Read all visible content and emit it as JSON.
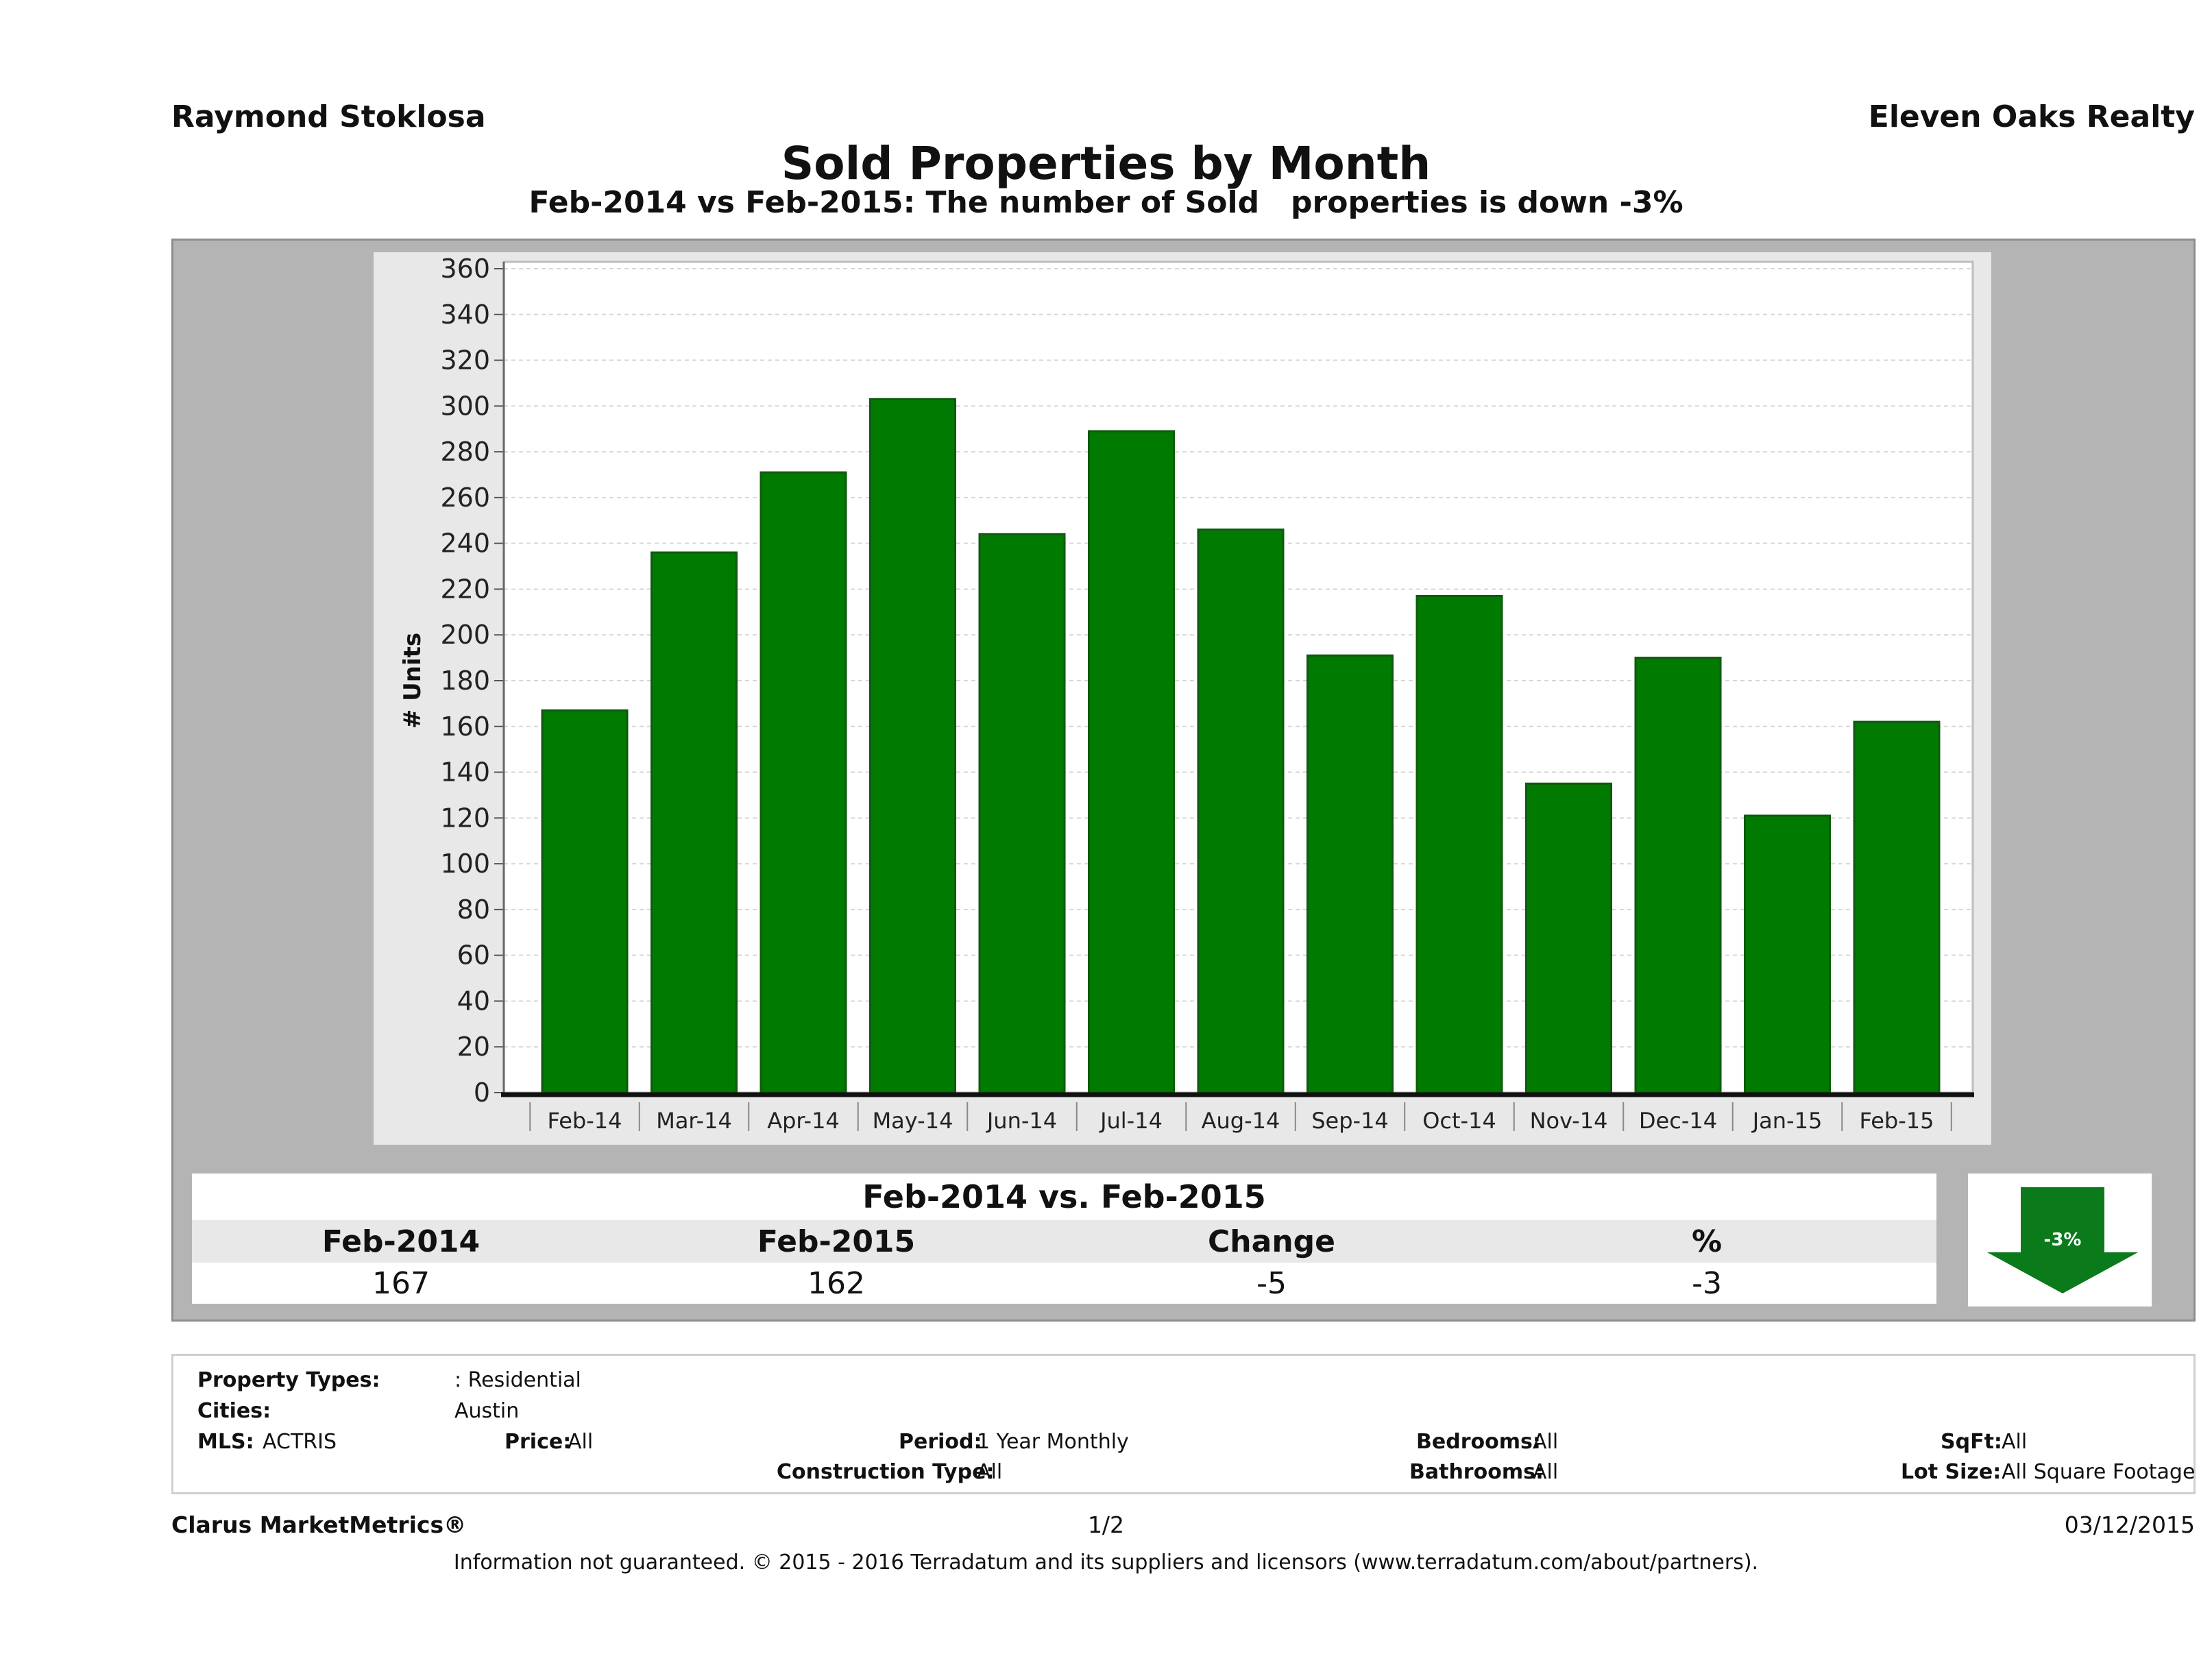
{
  "header": {
    "agent": "Raymond Stoklosa",
    "company": "Eleven Oaks Realty",
    "title": "Sold Properties by Month",
    "subtitle": "Feb-2014 vs Feb-2015: The number of Sold   properties is down -3%"
  },
  "chart_data": {
    "type": "bar",
    "title": "Sold Properties by Month",
    "subtitle": "Feb-2014 vs Feb-2015: The number of Sold   properties is down -3%",
    "xlabel": "",
    "ylabel": "# Units",
    "categories": [
      "Feb-14",
      "Mar-14",
      "Apr-14",
      "May-14",
      "Jun-14",
      "Jul-14",
      "Aug-14",
      "Sep-14",
      "Oct-14",
      "Nov-14",
      "Dec-14",
      "Jan-15",
      "Feb-15"
    ],
    "values": [
      167,
      236,
      271,
      303,
      244,
      289,
      246,
      191,
      217,
      135,
      190,
      121,
      162
    ],
    "ylim": [
      0,
      360
    ],
    "yticks": [
      0,
      20,
      40,
      60,
      80,
      100,
      120,
      140,
      160,
      180,
      200,
      220,
      240,
      260,
      280,
      300,
      320,
      340,
      360
    ],
    "grid": true,
    "bar_color": "#007a00"
  },
  "comparison": {
    "heading": "Feb-2014 vs. Feb-2015",
    "columns": [
      "Feb-2014",
      "Feb-2015",
      "Change",
      "%"
    ],
    "values": [
      "167",
      "162",
      "-5",
      "-3"
    ],
    "badge": "-3%",
    "badge_icon": "down-arrow-icon",
    "badge_color": "#0a7a1a"
  },
  "filters": {
    "property_types_label": "Property Types:",
    "property_types_value": ": Residential",
    "cities_label": "Cities:",
    "cities_value": "Austin",
    "mls_label": "MLS:",
    "mls_value": "ACTRIS",
    "price_label": "Price:",
    "price_value": "All",
    "period_label": "Period:",
    "period_value": "1 Year Monthly",
    "bedrooms_label": "Bedrooms:",
    "bedrooms_value": "All",
    "sqft_label": "SqFt:",
    "sqft_value": "All",
    "construction_label": "Construction Type:",
    "construction_value": "All",
    "bathrooms_label": "Bathrooms:",
    "bathrooms_value": "All",
    "lot_label": "Lot Size:",
    "lot_value": "All Square Footage"
  },
  "footer": {
    "brand": "Clarus MarketMetrics®",
    "page": "1/2",
    "date": "03/12/2015",
    "disclaimer": "Information not guaranteed. © 2015 - 2016 Terradatum and its suppliers and licensors (www.terradatum.com/about/partners)."
  }
}
